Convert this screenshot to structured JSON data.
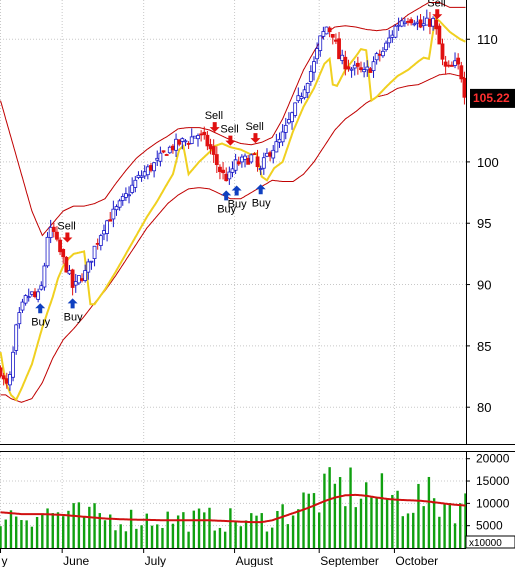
{
  "chart_data": {
    "type": "candlestick",
    "price_panel": {
      "ylim": [
        77,
        113.2
      ],
      "y_ticks": [
        "80",
        "85",
        "90",
        "95",
        "100",
        "110"
      ],
      "y_tick_values": [
        80,
        85,
        90,
        95,
        100,
        110
      ],
      "last_price_label": "105.22",
      "last_price": 105.22,
      "colors": {
        "up_candle": "#1818c8",
        "down_candle": "#e01010",
        "bollinger_band": "#c00000",
        "moving_average": "#f0d020",
        "buy_arrow": "#1040c0",
        "sell_arrow": "#e01010",
        "price_label_bg": "#000000",
        "price_label_fg": "#ff3030"
      },
      "signals": [
        {
          "type": "Buy",
          "label": "Buy",
          "bar": 38,
          "price": 88.8
        },
        {
          "type": "Buy",
          "label": "Buy",
          "bar": 69,
          "price": 89.2
        },
        {
          "type": "Sell",
          "label": "Sell",
          "bar": 64,
          "price": 93.1
        },
        {
          "type": "Sell",
          "label": "Sell",
          "bar": 205,
          "price": 102.1
        },
        {
          "type": "Sell",
          "label": "Sell",
          "bar": 220,
          "price": 101.0
        },
        {
          "type": "Sell",
          "label": "Sell",
          "bar": 244,
          "price": 101.2
        },
        {
          "type": "Buy",
          "label": "Buy",
          "bar": 216,
          "price": 98.0
        },
        {
          "type": "Buy",
          "label": "Buy",
          "bar": 226,
          "price": 98.4
        },
        {
          "type": "Buy",
          "label": "Buy",
          "bar": 249,
          "price": 98.5
        },
        {
          "type": "Sell",
          "label": "Sell",
          "bar": 418,
          "price": 111.3
        }
      ]
    },
    "volume_panel": {
      "ylim": [
        0,
        21500
      ],
      "y_ticks": [
        "5000",
        "10000",
        "15000",
        "20000"
      ],
      "y_tick_values": [
        5000,
        10000,
        15000,
        20000
      ],
      "multiplier_label": "x10000",
      "colors": {
        "bar": "#10a010",
        "moving_average": "#d01010"
      }
    },
    "x_axis": {
      "months": [
        {
          "label": "y",
          "bar": 0
        },
        {
          "label": "June",
          "bar": 59
        },
        {
          "label": "July",
          "bar": 137
        },
        {
          "label": "August",
          "bar": 224
        },
        {
          "label": "September",
          "bar": 305
        },
        {
          "label": "October",
          "bar": 377
        }
      ]
    },
    "keypoints": {
      "close": [
        [
          0,
          83
        ],
        [
          5,
          81.5
        ],
        [
          10,
          82.6
        ],
        [
          14,
          86
        ],
        [
          20,
          88
        ],
        [
          25,
          89
        ],
        [
          30,
          89.2
        ],
        [
          35,
          88.8
        ],
        [
          40,
          90
        ],
        [
          45,
          94
        ],
        [
          50,
          94.5
        ],
        [
          55,
          93
        ],
        [
          60,
          92
        ],
        [
          65,
          91
        ],
        [
          70,
          89.5
        ],
        [
          75,
          90.5
        ],
        [
          82,
          91
        ],
        [
          90,
          93
        ],
        [
          100,
          95
        ],
        [
          110,
          96
        ],
        [
          120,
          97.2
        ],
        [
          130,
          98.5
        ],
        [
          140,
          99.3
        ],
        [
          150,
          100
        ],
        [
          160,
          101
        ],
        [
          170,
          101.5
        ],
        [
          180,
          101.8
        ],
        [
          188,
          102.3
        ],
        [
          195,
          101.8
        ],
        [
          200,
          101.2
        ],
        [
          206,
          100
        ],
        [
          212,
          99
        ],
        [
          218,
          98.6
        ],
        [
          224,
          99.8
        ],
        [
          230,
          100
        ],
        [
          236,
          100.2
        ],
        [
          242,
          100.5
        ],
        [
          248,
          99
        ],
        [
          254,
          100.4
        ],
        [
          260,
          101.1
        ],
        [
          266,
          101.5
        ],
        [
          272,
          102.5
        ],
        [
          280,
          104
        ],
        [
          290,
          106
        ],
        [
          300,
          108
        ],
        [
          306,
          110
        ],
        [
          312,
          111
        ],
        [
          318,
          110.5
        ],
        [
          324,
          108.5
        ],
        [
          330,
          108
        ],
        [
          336,
          107.6
        ],
        [
          342,
          107.5
        ],
        [
          348,
          107.2
        ],
        [
          354,
          107.7
        ],
        [
          360,
          108.5
        ],
        [
          366,
          109
        ],
        [
          372,
          110
        ],
        [
          378,
          111
        ],
        [
          384,
          111.6
        ],
        [
          390,
          111.8
        ],
        [
          396,
          111.6
        ],
        [
          402,
          111
        ],
        [
          408,
          111.3
        ],
        [
          414,
          111.5
        ],
        [
          419,
          110
        ],
        [
          424,
          107.7
        ],
        [
          430,
          107.5
        ],
        [
          436,
          108
        ],
        [
          440,
          107.5
        ],
        [
          445,
          105.22
        ]
      ],
      "upper_band": [
        [
          0,
          105
        ],
        [
          10,
          102
        ],
        [
          20,
          99
        ],
        [
          30,
          96
        ],
        [
          40,
          94
        ],
        [
          50,
          95
        ],
        [
          60,
          96
        ],
        [
          70,
          96.4
        ],
        [
          80,
          96.4
        ],
        [
          90,
          96.6
        ],
        [
          100,
          97
        ],
        [
          110,
          98.2
        ],
        [
          120,
          99.3
        ],
        [
          130,
          100.3
        ],
        [
          140,
          101
        ],
        [
          150,
          101.6
        ],
        [
          160,
          102.1
        ],
        [
          170,
          102.7
        ],
        [
          180,
          102.8
        ],
        [
          190,
          102.8
        ],
        [
          200,
          102.6
        ],
        [
          210,
          102.2
        ],
        [
          220,
          101.8
        ],
        [
          230,
          101.5
        ],
        [
          240,
          101.4
        ],
        [
          250,
          101.6
        ],
        [
          260,
          102
        ],
        [
          270,
          103.5
        ],
        [
          280,
          105.5
        ],
        [
          290,
          107.5
        ],
        [
          300,
          109
        ],
        [
          310,
          110.4
        ],
        [
          320,
          111
        ],
        [
          330,
          111.1
        ],
        [
          340,
          111
        ],
        [
          350,
          110.8
        ],
        [
          360,
          110.7
        ],
        [
          370,
          110.8
        ],
        [
          380,
          111.3
        ],
        [
          390,
          112
        ],
        [
          400,
          112.5
        ],
        [
          410,
          113
        ],
        [
          420,
          113
        ],
        [
          430,
          112.6
        ],
        [
          445,
          112.6
        ]
      ],
      "lower_band": [
        [
          0,
          81
        ],
        [
          5,
          81
        ],
        [
          10,
          80.7
        ],
        [
          20,
          80.4
        ],
        [
          30,
          80.7
        ],
        [
          40,
          82
        ],
        [
          50,
          84
        ],
        [
          60,
          85.5
        ],
        [
          70,
          86.4
        ],
        [
          80,
          87.4
        ],
        [
          90,
          88.5
        ],
        [
          100,
          89.5
        ],
        [
          110,
          90.7
        ],
        [
          120,
          92
        ],
        [
          130,
          93.3
        ],
        [
          140,
          94.6
        ],
        [
          150,
          95.6
        ],
        [
          160,
          96.6
        ],
        [
          170,
          97.3
        ],
        [
          180,
          97.8
        ],
        [
          190,
          97.9
        ],
        [
          200,
          97.8
        ],
        [
          210,
          97.4
        ],
        [
          220,
          97
        ],
        [
          230,
          97
        ],
        [
          240,
          97.5
        ],
        [
          250,
          98
        ],
        [
          260,
          98.5
        ],
        [
          270,
          98.4
        ],
        [
          280,
          98.4
        ],
        [
          290,
          99
        ],
        [
          300,
          100
        ],
        [
          310,
          101.3
        ],
        [
          320,
          102.6
        ],
        [
          330,
          103.5
        ],
        [
          340,
          104.1
        ],
        [
          350,
          104.8
        ],
        [
          360,
          105.3
        ],
        [
          370,
          105.5
        ],
        [
          380,
          106
        ],
        [
          390,
          106.2
        ],
        [
          400,
          106.3
        ],
        [
          410,
          106.7
        ],
        [
          420,
          107.1
        ],
        [
          430,
          107.2
        ],
        [
          440,
          107
        ],
        [
          445,
          106.8
        ]
      ],
      "moving_average": [
        [
          0,
          84.5
        ],
        [
          5,
          82
        ],
        [
          10,
          81
        ],
        [
          15,
          80.6
        ],
        [
          20,
          81.5
        ],
        [
          30,
          83.5
        ],
        [
          40,
          86.5
        ],
        [
          50,
          89
        ],
        [
          55,
          90.5
        ],
        [
          60,
          91.5
        ],
        [
          65,
          92.1
        ],
        [
          70,
          92.5
        ],
        [
          75,
          92.6
        ],
        [
          80,
          92.7
        ],
        [
          86,
          88.4
        ],
        [
          90,
          88.4
        ],
        [
          95,
          89
        ],
        [
          100,
          89.6
        ],
        [
          110,
          91
        ],
        [
          120,
          92.5
        ],
        [
          130,
          94
        ],
        [
          140,
          95.5
        ],
        [
          150,
          96.8
        ],
        [
          158,
          98
        ],
        [
          165,
          99
        ],
        [
          171,
          101
        ],
        [
          175,
          101.3
        ],
        [
          180,
          99
        ],
        [
          190,
          100
        ],
        [
          200,
          100.8
        ],
        [
          205,
          101.3
        ],
        [
          212,
          101.5
        ],
        [
          220,
          101.2
        ],
        [
          230,
          101
        ],
        [
          240,
          100.6
        ],
        [
          245,
          100.7
        ],
        [
          250,
          98.8
        ],
        [
          255,
          98.5
        ],
        [
          262,
          99.5
        ],
        [
          270,
          100
        ],
        [
          280,
          102.5
        ],
        [
          290,
          104.5
        ],
        [
          300,
          106
        ],
        [
          310,
          108
        ],
        [
          315,
          108.4
        ],
        [
          318,
          106.3
        ],
        [
          322,
          106.2
        ],
        [
          330,
          107.5
        ],
        [
          340,
          108.6
        ],
        [
          345,
          109.2
        ],
        [
          350,
          109.1
        ],
        [
          355,
          105
        ],
        [
          360,
          105.3
        ],
        [
          370,
          106.2
        ],
        [
          380,
          107
        ],
        [
          390,
          107.5
        ],
        [
          400,
          108.2
        ],
        [
          405,
          108.5
        ],
        [
          410,
          108.4
        ],
        [
          416,
          111.7
        ],
        [
          420,
          111.5
        ],
        [
          430,
          110.6
        ],
        [
          440,
          110
        ],
        [
          445,
          109.8
        ]
      ],
      "volume": [
        [
          0,
          7800
        ],
        [
          20,
          7500
        ],
        [
          40,
          8000
        ],
        [
          60,
          7600
        ],
        [
          80,
          7200
        ],
        [
          100,
          6800
        ],
        [
          120,
          6500
        ],
        [
          140,
          6700
        ],
        [
          160,
          6600
        ],
        [
          180,
          6500
        ],
        [
          200,
          6400
        ],
        [
          220,
          6200
        ],
        [
          240,
          6000
        ],
        [
          250,
          6200
        ],
        [
          260,
          7000
        ],
        [
          270,
          8000
        ],
        [
          280,
          9000
        ],
        [
          290,
          10000
        ],
        [
          300,
          11000
        ],
        [
          310,
          12000
        ],
        [
          320,
          13000
        ],
        [
          330,
          13500
        ],
        [
          340,
          13200
        ],
        [
          350,
          12500
        ],
        [
          360,
          11800
        ],
        [
          370,
          11500
        ],
        [
          380,
          11200
        ],
        [
          390,
          11000
        ],
        [
          400,
          11000
        ],
        [
          410,
          11000
        ],
        [
          420,
          10500
        ],
        [
          430,
          10000
        ],
        [
          445,
          9500
        ]
      ],
      "volume_ma": [
        [
          0,
          8000
        ],
        [
          20,
          7600
        ],
        [
          40,
          7600
        ],
        [
          60,
          7400
        ],
        [
          80,
          7000
        ],
        [
          100,
          6600
        ],
        [
          120,
          6400
        ],
        [
          140,
          6300
        ],
        [
          160,
          6200
        ],
        [
          180,
          6200
        ],
        [
          200,
          6200
        ],
        [
          220,
          6000
        ],
        [
          240,
          5800
        ],
        [
          250,
          5800
        ],
        [
          260,
          6200
        ],
        [
          270,
          7000
        ],
        [
          280,
          7800
        ],
        [
          290,
          8600
        ],
        [
          300,
          9500
        ],
        [
          310,
          10500
        ],
        [
          320,
          11300
        ],
        [
          330,
          11800
        ],
        [
          340,
          11900
        ],
        [
          350,
          11700
        ],
        [
          360,
          11300
        ],
        [
          370,
          11000
        ],
        [
          380,
          10800
        ],
        [
          390,
          10700
        ],
        [
          400,
          10600
        ],
        [
          410,
          10400
        ],
        [
          420,
          10100
        ],
        [
          430,
          9800
        ],
        [
          445,
          9500
        ]
      ]
    }
  }
}
